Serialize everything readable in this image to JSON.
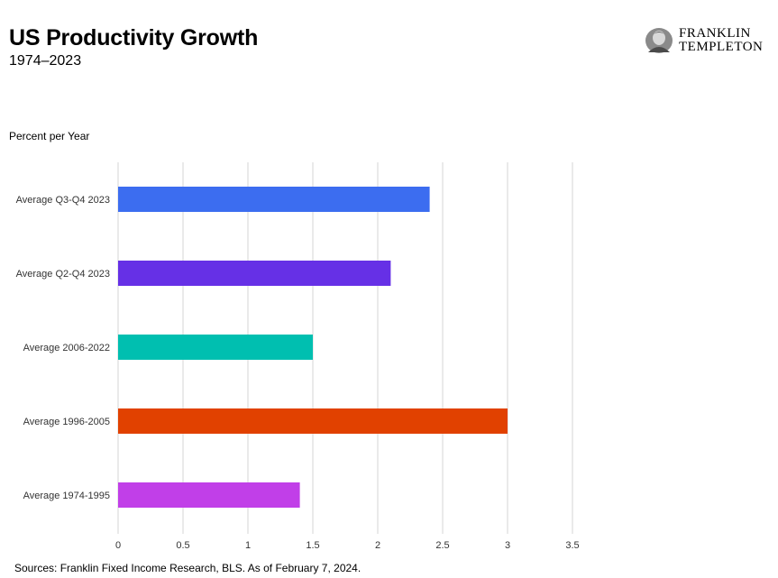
{
  "header": {
    "title": "US Productivity Growth",
    "subtitle": "1974–2023",
    "ylabel": "Percent per Year"
  },
  "logo": {
    "line1": "FRANKLIN",
    "line2": "TEMPLETON"
  },
  "footer": {
    "source": "Sources: Franklin Fixed Income Research, BLS. As of February 7, 2024."
  },
  "chart_data": {
    "type": "bar",
    "orientation": "horizontal",
    "title": "US Productivity Growth",
    "subtitle": "1974–2023",
    "ylabel": "Percent per Year",
    "categories": [
      "Average Q3-Q4 2023",
      "Average Q2-Q4 2023",
      "Average 2006-2022",
      "Average 1996-2005",
      "Average 1974-1995"
    ],
    "values": [
      2.4,
      2.1,
      1.5,
      3.0,
      1.4
    ],
    "colors": [
      "#3c6df0",
      "#6630e6",
      "#00bfb0",
      "#e14100",
      "#c13fe8"
    ],
    "xlim": [
      0,
      3.5
    ],
    "xticks": [
      "0",
      "0.5",
      "1",
      "1.5",
      "2",
      "2.5",
      "3",
      "3.5"
    ],
    "grid": true
  }
}
